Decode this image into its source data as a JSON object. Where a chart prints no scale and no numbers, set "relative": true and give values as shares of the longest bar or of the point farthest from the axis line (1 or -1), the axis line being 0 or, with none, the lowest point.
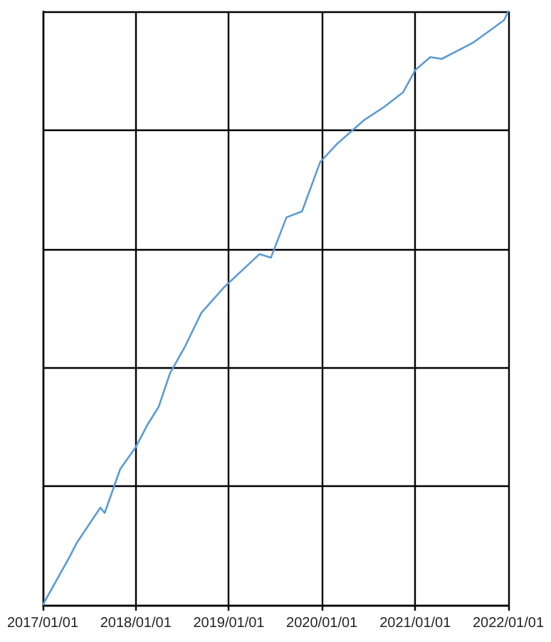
{
  "chart_data": {
    "type": "line",
    "relative": true,
    "grid": true,
    "marker": "none",
    "line_style": "solid",
    "x": [
      "2017-01-01",
      "2017-04-15",
      "2017-05-15",
      "2017-08-15",
      "2017-09-01",
      "2017-11-01",
      "2018-01-01",
      "2018-02-15",
      "2018-04-01",
      "2018-05-15",
      "2018-07-15",
      "2018-09-15",
      "2018-12-15",
      "2019-05-01",
      "2019-06-15",
      "2019-08-15",
      "2019-10-15",
      "2019-12-25",
      "2020-03-01",
      "2020-06-15",
      "2020-09-01",
      "2020-11-15",
      "2021-01-01",
      "2021-03-01",
      "2021-04-15",
      "2021-08-15",
      "2021-12-15",
      "2022-01-01"
    ],
    "series": [
      {
        "color": "#5b9bd5",
        "values": [
          0,
          0.08,
          0.105,
          0.164,
          0.155,
          0.229,
          0.266,
          0.303,
          0.334,
          0.39,
          0.437,
          0.492,
          0.536,
          0.591,
          0.585,
          0.653,
          0.663,
          0.746,
          0.777,
          0.817,
          0.839,
          0.864,
          0.901,
          0.923,
          0.92,
          0.947,
          0.985,
          1
        ]
      }
    ],
    "xlim": [
      "2017-01-01",
      "2022-01-01"
    ],
    "xticks": [
      {
        "value": "2017-01-01",
        "label": "2017/01/01"
      },
      {
        "value": "2018-01-01",
        "label": "2018/01/01"
      },
      {
        "value": "2019-01-01",
        "label": "2019/01/01"
      },
      {
        "value": "2020-01-01",
        "label": "2020/01/01"
      },
      {
        "value": "2021-01-01",
        "label": "2021/01/01"
      },
      {
        "value": "2022-01-01",
        "label": "2022/01/01"
      }
    ]
  }
}
